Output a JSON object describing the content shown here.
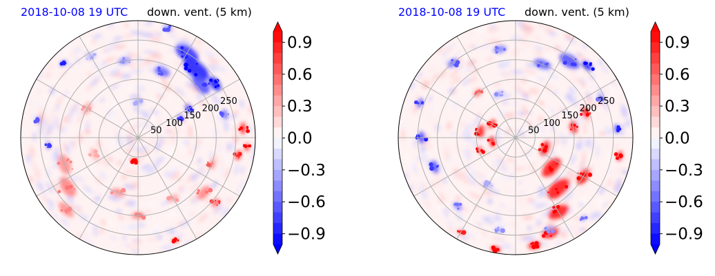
{
  "panels": [
    {
      "date_label": "2018-10-08 19 UTC",
      "variable_label": "down. vent. (5 km)"
    },
    {
      "date_label": "2018-10-08 19 UTC",
      "variable_label": "down. vent. (5 km)"
    }
  ],
  "chart_data": [
    {
      "type": "heatmap",
      "projection": "polar",
      "title": "2018-10-08 19 UTC",
      "subtitle": "down. vent. (5 km)",
      "range_rings": [
        50,
        100,
        150,
        200,
        250
      ],
      "range_labels": [
        "50",
        "100",
        "150",
        "200",
        "250"
      ],
      "colorbar": {
        "ticks": [
          0.9,
          0.6,
          0.3,
          0.0,
          -0.3,
          -0.6,
          -0.9
        ],
        "tick_labels": [
          "0.9",
          "0.6",
          "0.3",
          "0.0",
          "−0.3",
          "−0.6",
          "−0.9"
        ],
        "vmin": -1.0,
        "vmax": 1.0,
        "extend": "both",
        "colormap": "bwr"
      },
      "colors": {
        "negative": "#0000ff",
        "positive": "#ff0000",
        "neutral": "#ffffff",
        "background_tint": "#fff0f0"
      }
    },
    {
      "type": "heatmap",
      "projection": "polar",
      "title": "2018-10-08 19 UTC",
      "subtitle": "down. vent. (5 km)",
      "range_rings": [
        50,
        100,
        150,
        200,
        250
      ],
      "range_labels": [
        "50",
        "100",
        "150",
        "200",
        "250"
      ],
      "colorbar": {
        "ticks": [
          0.9,
          0.6,
          0.3,
          0.0,
          -0.3,
          -0.6,
          -0.9
        ],
        "tick_labels": [
          "0.9",
          "0.6",
          "0.3",
          "0.0",
          "−0.3",
          "−0.6",
          "−0.9"
        ],
        "vmin": -1.0,
        "vmax": 1.0,
        "extend": "both",
        "colormap": "bwr"
      },
      "colors": {
        "negative": "#0000ff",
        "positive": "#ff0000",
        "neutral": "#ffffff",
        "background_tint": "#fff0f0"
      }
    }
  ]
}
